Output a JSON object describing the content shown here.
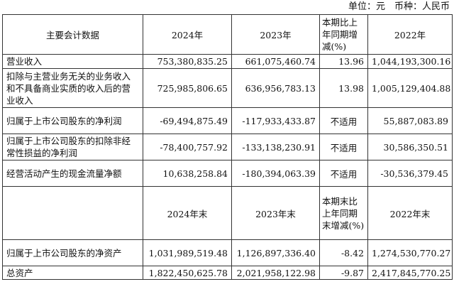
{
  "unit_line": "单位：元　币种：人民币",
  "header1": {
    "col0": "主要会计数据",
    "col1": "2024年",
    "col2": "2023年",
    "col3": "本期比上年同期增减(%)",
    "col4": "2022年"
  },
  "header2": {
    "col0": "",
    "col1": "2024年末",
    "col2": "2023年末",
    "col3": "本期末比上年同期末增减(%)",
    "col4": "2022年末"
  },
  "rows_a": [
    {
      "label": "营业收入",
      "v2024": "753,380,835.25",
      "v2023": "661,075,460.74",
      "change": "13.96",
      "v2022": "1,044,193,300.16"
    },
    {
      "label": "扣除与主营业务无关的业务收入和不具备商业实质的收入后的营业收入",
      "v2024": "725,985,806.65",
      "v2023": "636,956,783.13",
      "change": "13.98",
      "v2022": "1,005,129,404.88"
    },
    {
      "label": "归属于上市公司股东的净利润",
      "v2024": "-69,494,875.49",
      "v2023": "-117,933,433.87",
      "change": "不适用",
      "v2022": "55,887,083.89"
    },
    {
      "label": "归属于上市公司股东的扣除非经常性损益的净利润",
      "v2024": "-78,400,757.92",
      "v2023": "-133,138,230.91",
      "change": "不适用",
      "v2022": "30,586,350.51"
    },
    {
      "label": "经营活动产生的现金流量净额",
      "v2024": "10,638,258.84",
      "v2023": "-180,394,063.39",
      "change": "不适用",
      "v2022": "-30,536,379.45"
    }
  ],
  "rows_b": [
    {
      "label": "归属于上市公司股东的净资产",
      "v2024": "1,031,989,519.48",
      "v2023": "1,126,897,336.40",
      "change": "-8.42",
      "v2022": "1,274,530,770.27"
    },
    {
      "label": "总资产",
      "v2024": "1,822,450,625.78",
      "v2023": "2,021,958,122.98",
      "change": "-9.87",
      "v2022": "2,417,845,770.25"
    }
  ]
}
